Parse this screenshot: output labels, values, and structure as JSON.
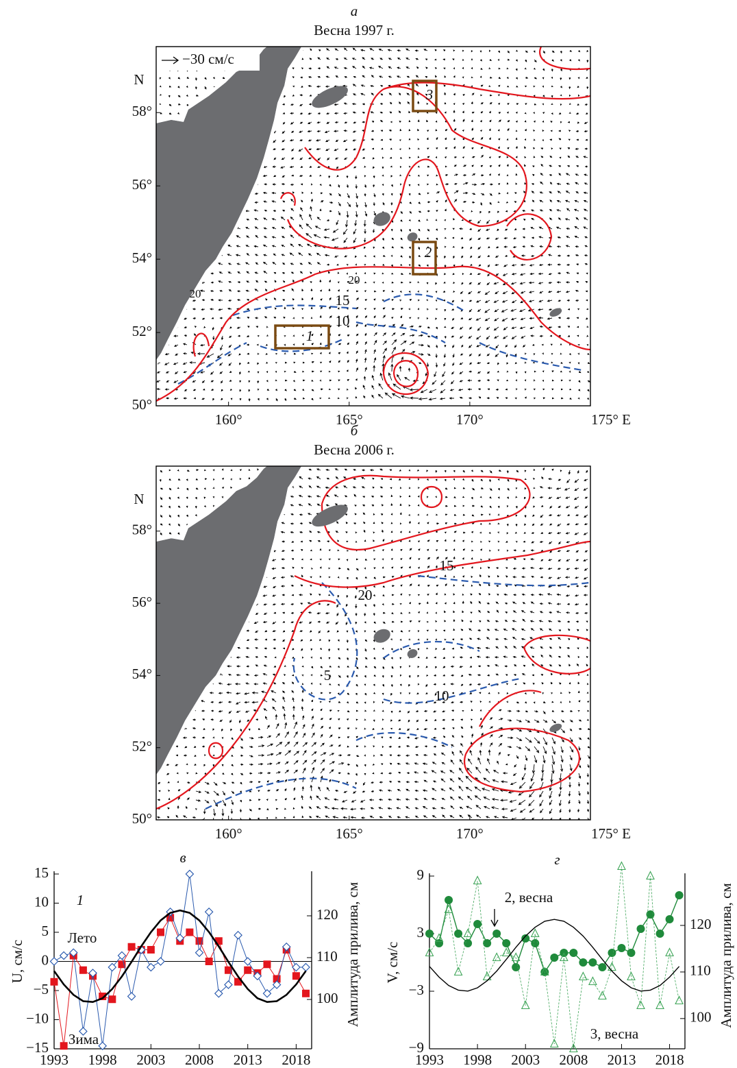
{
  "maps": [
    {
      "letter": "а",
      "title": "Весна 1997 г.",
      "scale_label": "−30 см/с",
      "ylabel": "N",
      "lonlim": [
        157,
        175
      ],
      "latlim": [
        50,
        59.8
      ],
      "lonticks": [
        {
          "value": 160,
          "label": "160°"
        },
        {
          "value": 165,
          "label": "165°"
        },
        {
          "value": 170,
          "label": "170°"
        },
        {
          "value": 175,
          "label": "175° E"
        }
      ],
      "latticks": [
        {
          "value": 50,
          "label": "50°"
        },
        {
          "value": 52,
          "label": "52°"
        },
        {
          "value": 54,
          "label": "54°"
        },
        {
          "value": 56,
          "label": "56°"
        },
        {
          "value": 58,
          "label": "58°"
        }
      ],
      "labels": [
        "15",
        "10",
        "20",
        "20",
        "1",
        "2",
        "3"
      ]
    },
    {
      "letter": "б",
      "title": "Весна 2006 г.",
      "ylabel": "N",
      "lonlim": [
        157,
        175
      ],
      "latlim": [
        50,
        59.8
      ],
      "lonticks": [
        {
          "value": 160,
          "label": "160°"
        },
        {
          "value": 165,
          "label": "165°"
        },
        {
          "value": 170,
          "label": "170°"
        },
        {
          "value": 175,
          "label": "175° E"
        }
      ],
      "latticks": [
        {
          "value": 50,
          "label": "50°"
        },
        {
          "value": 52,
          "label": "52°"
        },
        {
          "value": 54,
          "label": "54°"
        },
        {
          "value": 56,
          "label": "56°"
        },
        {
          "value": 58,
          "label": "58°"
        }
      ],
      "labels": [
        "15",
        "10",
        "5",
        "20"
      ]
    }
  ],
  "chart_data": [
    {
      "type": "line",
      "letter": "в",
      "ylabel": "U, см/с",
      "y2label": "Амплитуда прилива, см",
      "x": [
        1993,
        1994,
        1995,
        1996,
        1997,
        1998,
        1999,
        2000,
        2001,
        2002,
        2003,
        2004,
        2005,
        2006,
        2007,
        2008,
        2009,
        2010,
        2011,
        2012,
        2013,
        2014,
        2015,
        2016,
        2017,
        2018,
        2019
      ],
      "xlim": [
        1993,
        2019.6
      ],
      "xticks": [
        1993,
        1998,
        2003,
        2008,
        2013,
        2018
      ],
      "ylim": [
        -15,
        15
      ],
      "yticks": [
        {
          "value": -15,
          "label": "−15"
        },
        {
          "value": -10,
          "label": "−10"
        },
        {
          "value": -5,
          "label": "−5"
        },
        0,
        5,
        10,
        15
      ],
      "y2lim": [
        88.2,
        130
      ],
      "y2ticks": [
        100,
        110,
        120
      ],
      "zero_line": true,
      "series": [
        {
          "color": "#e3161d",
          "marker": "square",
          "width": 1,
          "values": [
            -3.5,
            -14.5,
            1,
            -1.5,
            -2.5,
            -6,
            -6.5,
            -0.5,
            2.5,
            2,
            2,
            5,
            7.5,
            3.5,
            5,
            3.5,
            0,
            3.5,
            -1.5,
            -3.5,
            -1.5,
            -2,
            -0.5,
            -3,
            2,
            -2.5,
            -5.5
          ]
        },
        {
          "color": "#2a5aae",
          "marker": "diamond",
          "width": 1,
          "values": [
            0,
            1,
            1.5,
            -12,
            -2,
            -14.5,
            -1,
            1,
            -6,
            2,
            -1,
            0,
            8.5,
            4,
            15,
            1.5,
            8.5,
            -5.5,
            -4,
            4.5,
            0,
            -2.5,
            -5.5,
            -4,
            2.5,
            -1,
            -1
          ]
        },
        {
          "axis": "y2",
          "color": "#000000",
          "marker": "none",
          "width": 2.6,
          "values": [
            106.8,
            103.6,
            101.1,
            99.6,
            99.4,
            100.3,
            102.5,
            105.5,
            109.0,
            112.7,
            116.1,
            118.9,
            120.7,
            121.3,
            120.7,
            118.9,
            116.1,
            112.7,
            109.0,
            105.5,
            102.5,
            100.3,
            99.4,
            99.6,
            101.1,
            103.6,
            106.8
          ]
        }
      ],
      "annotations": [
        "1",
        "Лето",
        "Зима"
      ]
    },
    {
      "type": "line",
      "letter": "г",
      "ylabel": "V, см/с",
      "y2label": "Амплитуда прилива, см",
      "x": [
        1993,
        1994,
        1995,
        1996,
        1997,
        1998,
        1999,
        2000,
        2001,
        2002,
        2003,
        2004,
        2005,
        2006,
        2007,
        2008,
        2009,
        2010,
        2011,
        2012,
        2013,
        2014,
        2015,
        2016,
        2017,
        2018,
        2019
      ],
      "xlim": [
        1993,
        2019.6
      ],
      "xticks": [
        1993,
        1998,
        2003,
        2008,
        2013,
        2018
      ],
      "ylim": [
        -9,
        9
      ],
      "yticks": [
        {
          "value": -9,
          "label": "−9"
        },
        {
          "value": -3,
          "label": "−3"
        },
        3,
        9
      ],
      "y2lim": [
        93.5,
        130.6
      ],
      "y2ticks": [
        100,
        110,
        120
      ],
      "zero_line": true,
      "series": [
        {
          "color": "#1f8a3b",
          "marker": "circle",
          "width": 1.4,
          "values": [
            3,
            2,
            6.5,
            3,
            2,
            4,
            2,
            3,
            2,
            -0.5,
            2.5,
            2,
            -1,
            0.5,
            1,
            1,
            0,
            0,
            -0.5,
            1,
            1.5,
            1,
            3.5,
            5,
            3,
            4.5,
            7
          ]
        },
        {
          "color": "#3da457",
          "marker": "triangle",
          "width": 0.8,
          "dash": true,
          "values": [
            1,
            2.5,
            5.5,
            -1,
            3,
            8.5,
            -1.5,
            0.5,
            1,
            0.5,
            -4.5,
            3,
            -1,
            -8.5,
            0.5,
            -9,
            -1.5,
            -2,
            -3.5,
            -0.5,
            10,
            -1.5,
            -4.5,
            9,
            -4.5,
            1,
            -4
          ]
        },
        {
          "axis": "y2",
          "color": "#000000",
          "marker": "none",
          "width": 1.4,
          "values": [
            111.2,
            108.9,
            107.1,
            106.1,
            105.9,
            106.6,
            108.1,
            110.2,
            112.7,
            115.3,
            117.7,
            119.6,
            120.9,
            121.3,
            120.9,
            119.6,
            117.7,
            115.3,
            112.7,
            110.2,
            108.1,
            106.6,
            105.9,
            106.1,
            107.1,
            108.9,
            111.2
          ]
        }
      ],
      "annotations": [
        "2, весна",
        "3, весна"
      ]
    }
  ]
}
